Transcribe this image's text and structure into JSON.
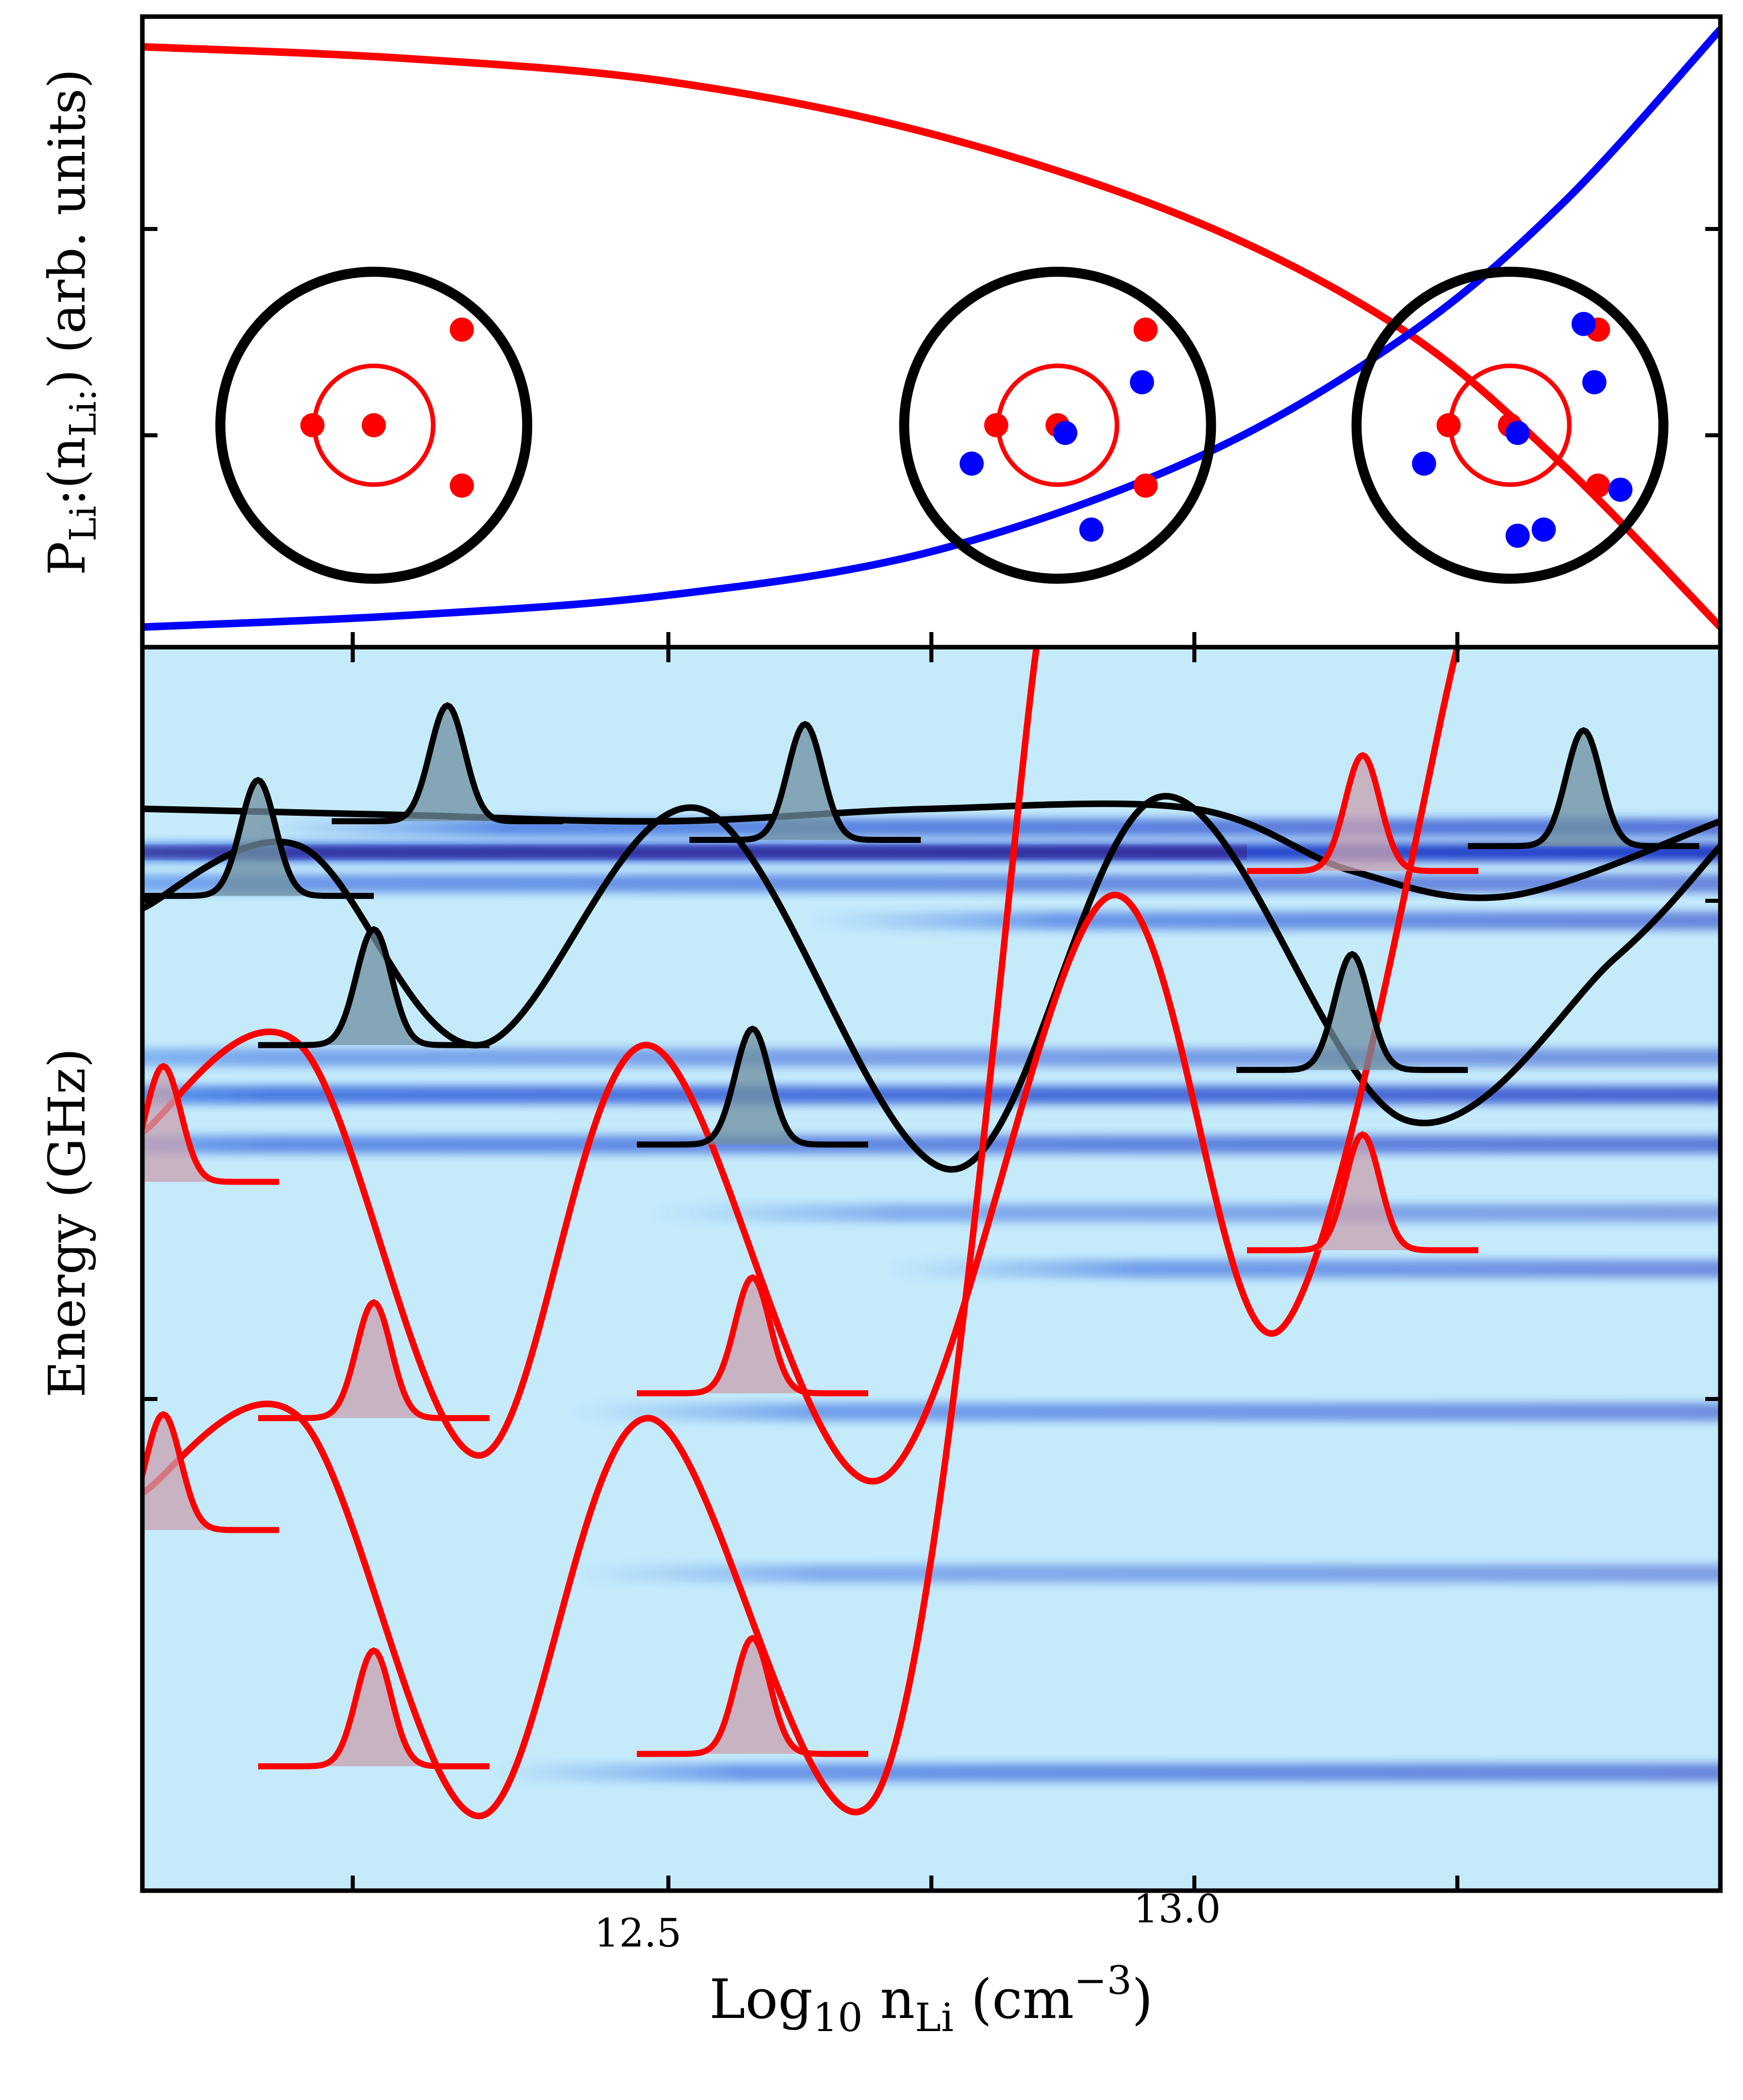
{
  "chart_data": [
    {
      "panel": "top",
      "type": "line",
      "ylabel_main": "P",
      "ylabel_sub": "Li",
      "ylabel_mid": ":(n",
      "ylabel_sub2": "Li:",
      "ylabel_tail": ") (arb. units)",
      "xlim": [
        12.0,
        13.5
      ],
      "series": [
        {
          "color": "#ff0000",
          "x": [
            12.0,
            12.25,
            12.5,
            12.75,
            13.0,
            13.2,
            13.35,
            13.5
          ],
          "y": [
            1.0,
            0.98,
            0.94,
            0.85,
            0.7,
            0.51,
            0.28,
            0.0
          ]
        },
        {
          "color": "#0000ff",
          "x": [
            12.0,
            12.25,
            12.5,
            12.75,
            13.0,
            13.2,
            13.35,
            13.5
          ],
          "y": [
            0.0,
            0.02,
            0.055,
            0.13,
            0.29,
            0.5,
            0.73,
            1.03
          ]
        }
      ],
      "atoms": [
        {
          "x": 12.22,
          "blue_electrons": 0
        },
        {
          "x": 12.87,
          "blue_electrons": 4
        },
        {
          "x": 13.3,
          "blue_electrons": 7
        }
      ]
    },
    {
      "panel": "bottom",
      "type": "heatmap",
      "ylabel": "Energy (GHz)",
      "xlabel_main": "Log",
      "xlabel_sub": "10",
      "xlabel_n": " n",
      "xlabel_sub2": "Li",
      "xlabel_unit": " (cm",
      "xlabel_sup": "−3",
      "xlabel_close": ")",
      "xlim": [
        12.0,
        13.5
      ],
      "xticks": [
        12.5,
        13.0
      ],
      "xtick_labels": [
        "12.5",
        "13.0"
      ],
      "bands": [
        {
          "y": 0.145,
          "strength": 0.7,
          "start": 0.15
        },
        {
          "y": 0.165,
          "strength": 1.0,
          "start": 0.0
        },
        {
          "y": 0.19,
          "strength": 0.6,
          "start": 0.0
        },
        {
          "y": 0.22,
          "strength": 0.6,
          "start": 0.5
        },
        {
          "y": 0.33,
          "strength": 0.5,
          "start": 0.0
        },
        {
          "y": 0.36,
          "strength": 0.8,
          "start": 0.0
        },
        {
          "y": 0.4,
          "strength": 0.65,
          "start": 0.0
        },
        {
          "y": 0.455,
          "strength": 0.45,
          "start": 0.4
        },
        {
          "y": 0.5,
          "strength": 0.55,
          "start": 0.55
        },
        {
          "y": 0.615,
          "strength": 0.55,
          "start": 0.35
        },
        {
          "y": 0.745,
          "strength": 0.45,
          "start": 0.35
        },
        {
          "y": 0.905,
          "strength": 0.6,
          "start": 0.3
        }
      ],
      "potential_curves": [
        {
          "color": "#000000",
          "x": [
            12.0,
            12.25,
            12.5,
            12.75,
            13.0,
            13.15,
            13.3,
            13.5
          ],
          "y": [
            0.13,
            0.135,
            0.14,
            0.13,
            0.13,
            0.18,
            0.2,
            0.14
          ]
        },
        {
          "color": "#000000",
          "x": [
            12.0,
            12.15,
            12.32,
            12.53,
            12.77,
            12.97,
            13.2,
            13.4,
            13.5
          ],
          "y": [
            0.21,
            0.16,
            0.32,
            0.13,
            0.42,
            0.12,
            0.38,
            0.25,
            0.16
          ]
        },
        {
          "color": "#ff0000",
          "x": [
            12.0,
            12.15,
            12.32,
            12.48,
            12.7,
            12.92,
            13.08,
            13.25
          ],
          "y": [
            0.39,
            0.32,
            0.65,
            0.32,
            0.67,
            0.2,
            0.55,
            0.0
          ]
        },
        {
          "color": "#ff0000",
          "x": [
            12.0,
            12.15,
            12.32,
            12.48,
            12.7,
            12.85
          ],
          "y": [
            0.68,
            0.62,
            0.94,
            0.62,
            0.92,
            0.0
          ]
        }
      ]
    }
  ]
}
